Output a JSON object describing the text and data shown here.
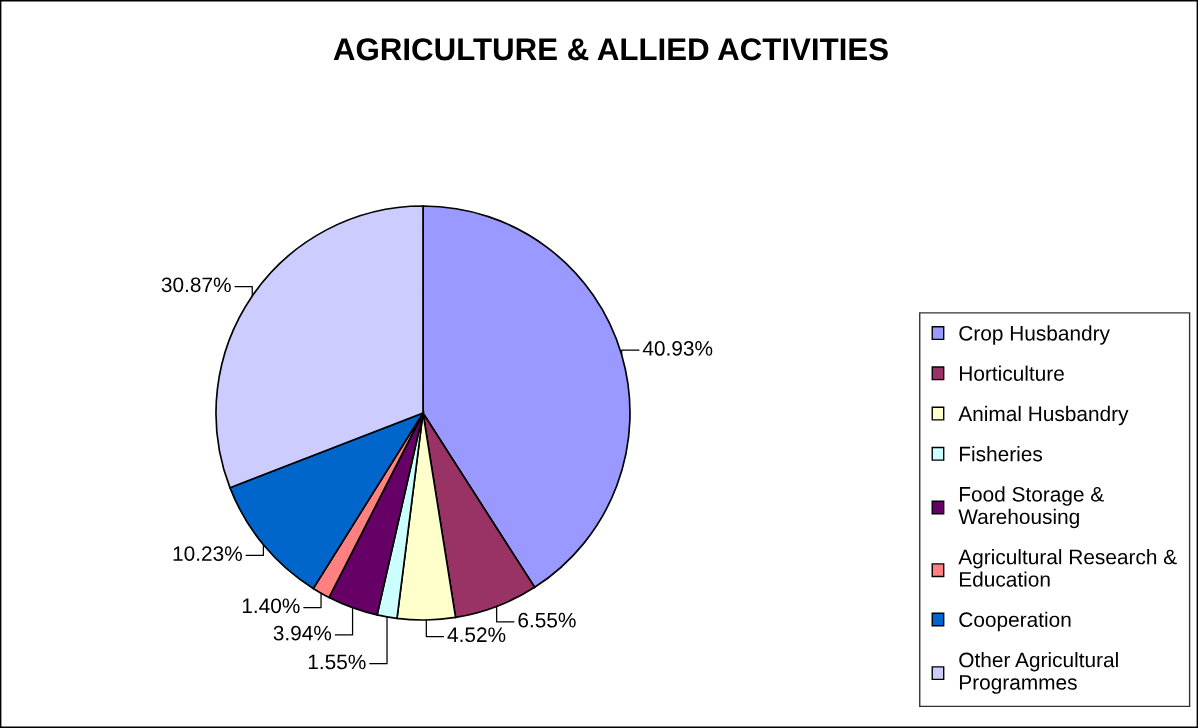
{
  "chart_data": {
    "type": "pie",
    "title": "AGRICULTURE & ALLIED ACTIVITIES",
    "categories": [
      "Crop Husbandry",
      "Horticulture",
      "Animal Husbandry",
      "Fisheries",
      "Food Storage & Warehousing",
      "Agricultural Research & Education",
      "Cooperation",
      "Other Agricultural Programmes"
    ],
    "values": [
      40.93,
      6.55,
      4.52,
      1.55,
      3.94,
      1.4,
      10.23,
      30.87
    ],
    "colors": [
      "#9999ff",
      "#993366",
      "#ffffcc",
      "#ccffff",
      "#660066",
      "#ff8080",
      "#0066cc",
      "#ccccff"
    ],
    "value_labels": [
      "40.93%",
      "6.55%",
      "4.52%",
      "1.55%",
      "3.94%",
      "1.40%",
      "10.23%",
      "30.87%"
    ],
    "legend": "right"
  }
}
